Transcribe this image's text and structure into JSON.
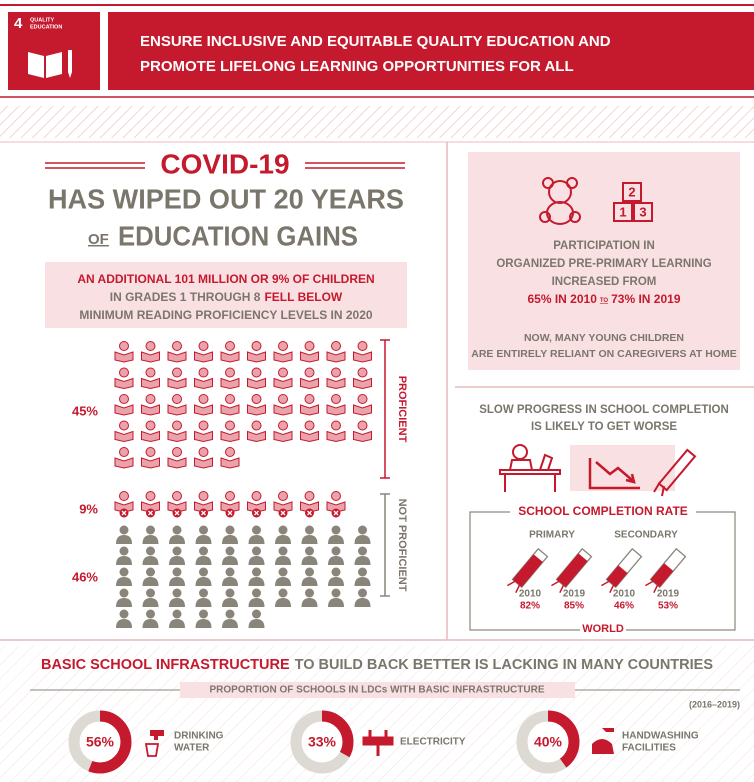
{
  "header": {
    "goal_number": "4",
    "goal_name": [
      "QUALITY",
      "EDUCATION"
    ],
    "title": [
      "ENSURE INCLUSIVE AND EQUITABLE QUALITY EDUCATION AND",
      "PROMOTE LIFELONG LEARNING OPPORTUNITIES FOR ALL"
    ]
  },
  "covid": {
    "headline": "COVID-19",
    "line": "HAS WIPED OUT 20 YEARS",
    "of": "OF",
    "gains": "EDUCATION GAINS"
  },
  "reading": {
    "line1": "AN ADDITIONAL 101 MILLION OR 9% OF CHILDREN",
    "line2": "IN GRADES 1 THROUGH 8",
    "line2_highlight": "FELL BELOW",
    "line3": "MINIMUM READING PROFICIENCY LEVELS IN 2020"
  },
  "children": {
    "groups": [
      {
        "value": 45,
        "label": "45%"
      },
      {
        "value": 9,
        "label": "9%"
      },
      {
        "value": 46,
        "label": "46%"
      }
    ],
    "proficient": "PROFICIENT",
    "not_proficient": "NOT PROFICIENT"
  },
  "pre_primary": {
    "blocks": [
      "2",
      "1",
      "3"
    ],
    "lines": [
      "PARTICIPATION IN",
      "ORGANIZED PRE-PRIMARY LEARNING",
      "INCREASED FROM"
    ],
    "from": "65% IN 2010",
    "to": "TO",
    "until": "73% IN 2019",
    "note": [
      "NOW, MANY YOUNG CHILDREN",
      "ARE ENTIRELY RELIANT ON CAREGIVERS AT HOME"
    ]
  },
  "completion": {
    "lines": [
      "SLOW PROGRESS IN SCHOOL COMPLETION",
      "IS LIKELY TO GET WORSE"
    ],
    "title": "SCHOOL COMPLETION RATE",
    "levels": [
      {
        "name": "PRIMARY",
        "points": [
          {
            "year": "2010",
            "value": 82,
            "label": "82%"
          },
          {
            "year": "2019",
            "value": 85,
            "label": "85%"
          }
        ]
      },
      {
        "name": "SECONDARY",
        "points": [
          {
            "year": "2010",
            "value": 46,
            "label": "46%"
          },
          {
            "year": "2019",
            "value": 53,
            "label": "53%"
          }
        ]
      }
    ],
    "region": "WORLD"
  },
  "infrastructure": {
    "title": "BASIC SCHOOL INFRASTRUCTURE",
    "title_rest": "TO BUILD BACK BETTER IS LACKING IN MANY COUNTRIES",
    "subtitle": "PROPORTION OF SCHOOLS IN LDCs WITH BASIC INFRASTRUCTURE",
    "period": "(2016–2019)",
    "items": [
      {
        "value": 56,
        "label": "56%",
        "name": [
          "DRINKING",
          "WATER"
        ]
      },
      {
        "value": 33,
        "label": "33%",
        "name": [
          "ELECTRICITY"
        ]
      },
      {
        "value": 40,
        "label": "40%",
        "name": [
          "HANDWASHING",
          "FACILITIES"
        ]
      }
    ]
  }
}
